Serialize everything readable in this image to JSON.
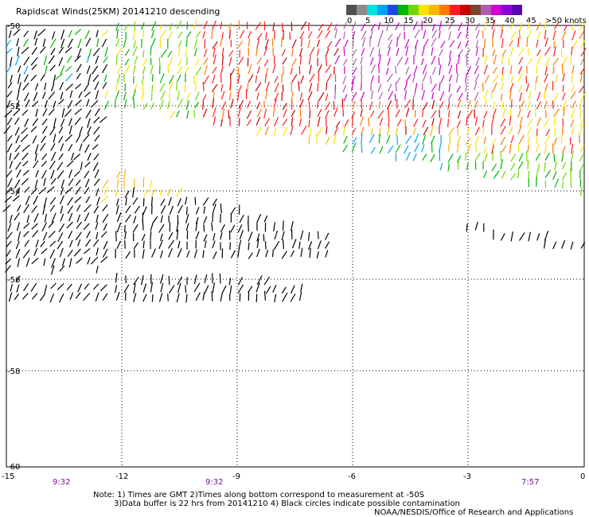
{
  "title": "Rapidscat Winds(25KM) 20141210 descending",
  "legend": {
    "labels": [
      "0",
      "5",
      "10",
      "15",
      "20",
      "25",
      "30",
      "35",
      "40",
      "45",
      ">50 knots"
    ],
    "colors": [
      "#505050",
      "#8c8c8c",
      "#00e0e0",
      "#00a0ff",
      "#1e46f0",
      "#00b400",
      "#70d800",
      "#ffe000",
      "#ffb400",
      "#ff7800",
      "#ff1e1e",
      "#c80000",
      "#78462d",
      "#b05ab4",
      "#d200d2",
      "#8c00dc",
      "#5a00b4"
    ]
  },
  "axes": {
    "x_ticks": [
      "-15",
      "-12",
      "-9",
      "-6",
      "-3",
      "0"
    ],
    "y_ticks": [
      "-50",
      "-52",
      "-54",
      "-56",
      "-58",
      "-60"
    ]
  },
  "times": [
    "9:32",
    "9:32",
    "7:57"
  ],
  "notes": {
    "line1": "Note: 1) Times are GMT 2)Times along bottom correspond to measurement at -50S",
    "line2": "3)Data buffer is 22 hrs from 20141210 4) Black circles indicate possible contamination",
    "line3": "NOAA/NESDIS/Office of Research and Applications"
  }
}
